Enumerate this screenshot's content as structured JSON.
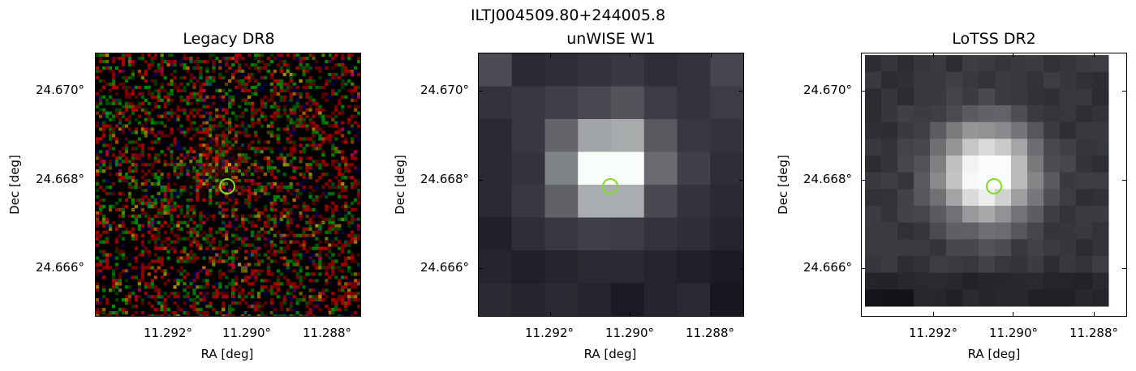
{
  "title": "ILTJ004509.80+244005.8",
  "panels": [
    {
      "title": "Legacy DR8",
      "xlabel": "RA [deg]",
      "ylabel": "Dec [deg]",
      "xticks": [
        "11.292°",
        "11.290°",
        "11.288°"
      ],
      "yticks": [
        "24.670°",
        "24.668°",
        "24.666°"
      ],
      "image_kind": "rgb-noise-optical"
    },
    {
      "title": "unWISE W1",
      "xlabel": "RA [deg]",
      "ylabel": "Dec [deg]",
      "xticks": [
        "11.292°",
        "11.290°",
        "11.288°"
      ],
      "yticks": [
        "24.670°",
        "24.668°",
        "24.666°"
      ],
      "image_kind": "grayscale-infrared"
    },
    {
      "title": "LoTSS DR2",
      "xlabel": "RA [deg]",
      "ylabel": "Dec [deg]",
      "xticks": [
        "11.292°",
        "11.290°",
        "11.288°"
      ],
      "yticks": [
        "24.670°",
        "24.668°",
        "24.666°"
      ],
      "image_kind": "grayscale-radio"
    }
  ],
  "marker_color": "#7fe01f"
}
